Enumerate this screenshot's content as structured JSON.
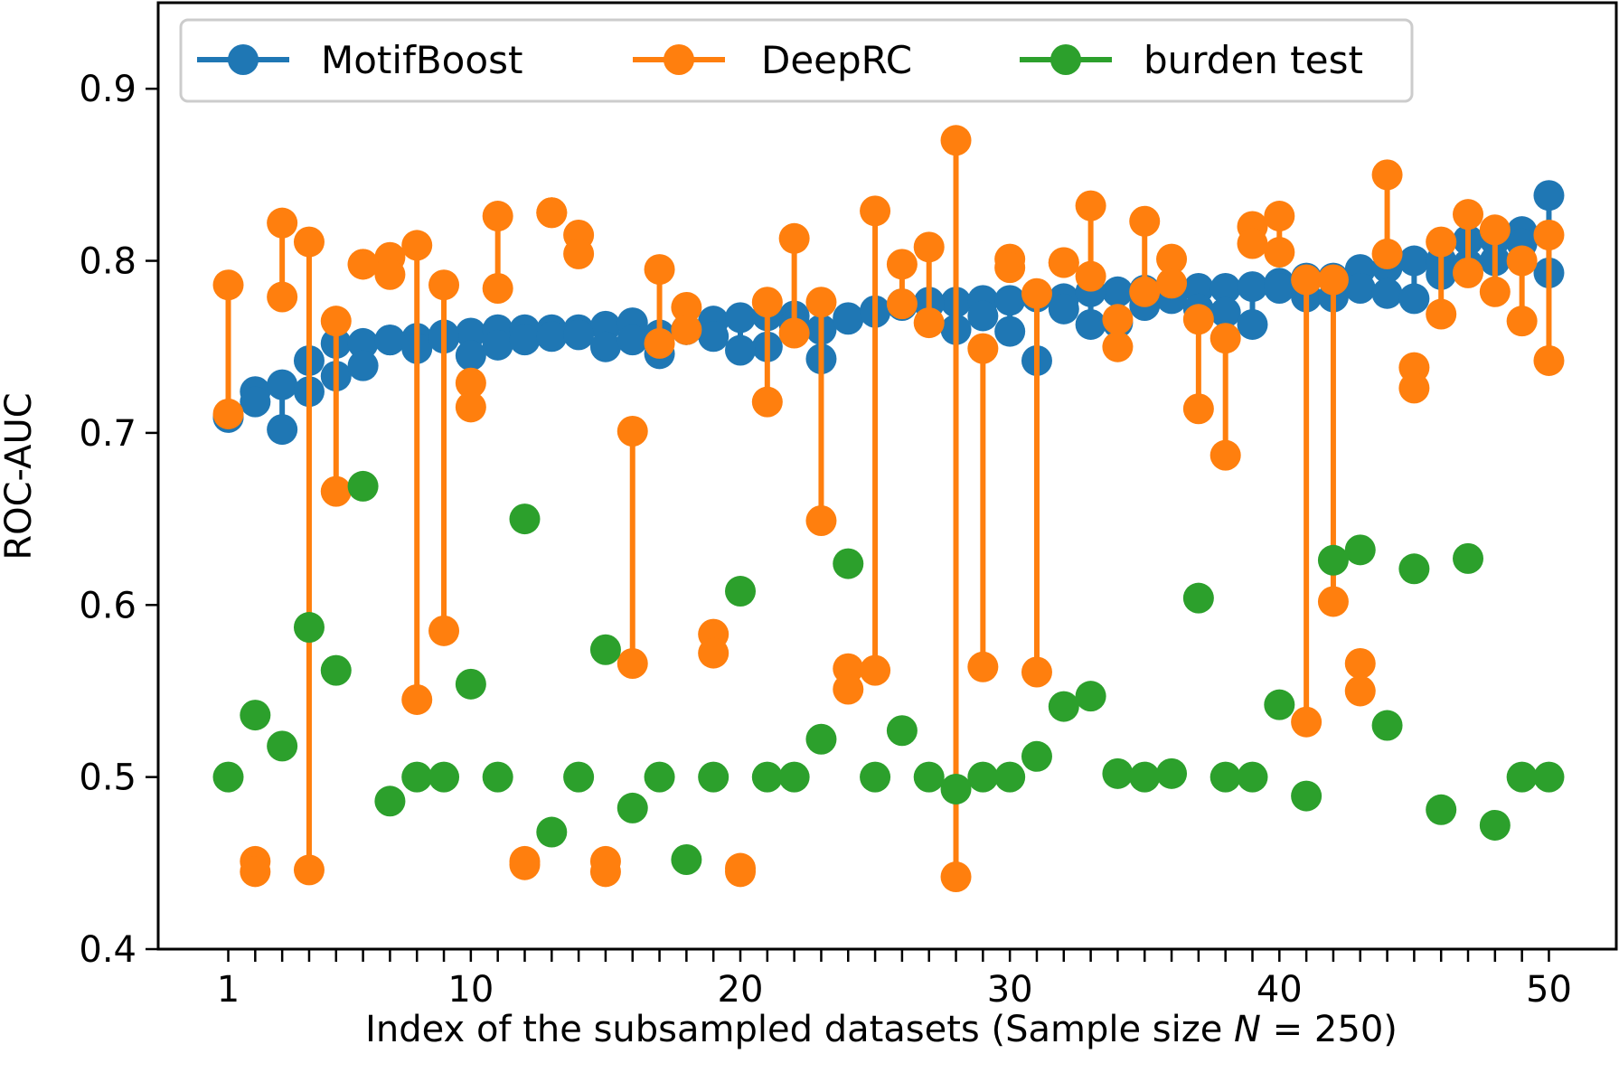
{
  "chart_data": {
    "type": "scatter",
    "title": "",
    "xlabel_prefix": "Index of the subsampled datasets (Sample size ",
    "xlabel_var": "N",
    "xlabel_suffix": " = 250)",
    "ylabel": "ROC-AUC",
    "xlim": [
      -1.6,
      52.5
    ],
    "ylim": [
      0.4,
      0.95
    ],
    "xticks": [
      1,
      10,
      20,
      30,
      40,
      50
    ],
    "xtick_labels": [
      "1",
      "10",
      "20",
      "30",
      "40",
      "50"
    ],
    "yticks": [
      0.4,
      0.5,
      0.6,
      0.7,
      0.8,
      0.9
    ],
    "ytick_labels": [
      "0.4",
      "0.5",
      "0.6",
      "0.7",
      "0.8",
      "0.9"
    ],
    "legend_position": "top",
    "colors": {
      "motifboost": "#1f77b4",
      "deeprc": "#ff7f0e",
      "burden": "#2ca02c"
    },
    "x": [
      1,
      2,
      3,
      4,
      5,
      6,
      7,
      8,
      9,
      10,
      11,
      12,
      13,
      14,
      15,
      16,
      17,
      18,
      19,
      20,
      21,
      22,
      23,
      24,
      25,
      26,
      27,
      28,
      29,
      30,
      31,
      32,
      33,
      34,
      35,
      36,
      37,
      38,
      39,
      40,
      41,
      42,
      43,
      44,
      45,
      46,
      47,
      48,
      49,
      50
    ],
    "series": [
      {
        "name": "MotifBoost",
        "color": "#1f77b4",
        "runs": [
          [
            0.709,
            0.724,
            0.728,
            0.742,
            0.752,
            0.752,
            0.754,
            0.755,
            0.757,
            0.758,
            0.76,
            0.76,
            0.76,
            0.76,
            0.762,
            0.764,
            0.757,
            0.76,
            0.765,
            0.767,
            0.75,
            0.768,
            0.76,
            0.767,
            0.771,
            0.775,
            0.776,
            0.776,
            0.777,
            0.777,
            0.742,
            0.778,
            0.763,
            0.782,
            0.783,
            0.784,
            0.784,
            0.784,
            0.785,
            0.787,
            0.79,
            0.79,
            0.795,
            0.796,
            0.8,
            0.8,
            0.812,
            0.812,
            0.817,
            0.838
          ],
          [
            0.709,
            0.718,
            0.702,
            0.724,
            0.733,
            0.739,
            0.754,
            0.749,
            0.755,
            0.745,
            0.751,
            0.754,
            0.756,
            0.757,
            0.75,
            0.754,
            0.746,
            0.76,
            0.756,
            0.748,
            0.768,
            0.763,
            0.743,
            0.766,
            0.77,
            0.774,
            0.775,
            0.76,
            0.768,
            0.759,
            0.779,
            0.772,
            0.782,
            0.764,
            0.774,
            0.778,
            0.772,
            0.77,
            0.763,
            0.784,
            0.779,
            0.779,
            0.784,
            0.781,
            0.778,
            0.792,
            0.798,
            0.8,
            0.81,
            0.793
          ]
        ]
      },
      {
        "name": "DeepRC",
        "color": "#ff7f0e",
        "runs": [
          [
            0.786,
            0.451,
            0.822,
            0.811,
            0.765,
            0.798,
            0.802,
            0.809,
            0.786,
            0.729,
            0.826,
            0.451,
            0.828,
            0.815,
            0.451,
            0.701,
            0.795,
            0.773,
            0.583,
            0.447,
            0.776,
            0.813,
            0.776,
            0.563,
            0.829,
            0.798,
            0.808,
            0.87,
            0.749,
            0.801,
            0.781,
            0.799,
            0.832,
            0.766,
            0.823,
            0.801,
            0.766,
            0.755,
            0.82,
            0.826,
            0.789,
            0.789,
            0.566,
            0.85,
            0.738,
            0.811,
            0.827,
            0.818,
            0.8,
            0.815
          ],
          [
            0.711,
            0.445,
            0.779,
            0.446,
            0.666,
            0.798,
            0.792,
            0.545,
            0.585,
            0.715,
            0.784,
            0.449,
            0.828,
            0.804,
            0.445,
            0.566,
            0.752,
            0.76,
            0.572,
            0.445,
            0.718,
            0.758,
            0.649,
            0.551,
            0.562,
            0.775,
            0.764,
            0.442,
            0.564,
            0.796,
            0.561,
            0.799,
            0.791,
            0.75,
            0.782,
            0.787,
            0.714,
            0.687,
            0.81,
            0.805,
            0.532,
            0.602,
            0.55,
            0.804,
            0.726,
            0.769,
            0.793,
            0.782,
            0.765,
            0.742
          ]
        ]
      },
      {
        "name": "burden test",
        "color": "#2ca02c",
        "runs": [
          [
            0.5,
            0.536,
            0.518,
            0.587,
            0.562,
            0.669,
            0.486,
            0.5,
            0.5,
            0.554,
            0.5,
            0.65,
            0.468,
            0.5,
            0.574,
            0.482,
            0.5,
            0.452,
            0.5,
            0.608,
            0.5,
            0.5,
            0.522,
            0.624,
            0.5,
            0.527,
            0.5,
            0.493,
            0.5,
            0.5,
            0.512,
            0.541,
            0.547,
            0.502,
            0.5,
            0.502,
            0.604,
            0.5,
            0.5,
            0.542,
            0.489,
            0.626,
            0.632,
            0.53,
            0.621,
            0.481,
            0.627,
            0.472,
            0.5,
            0.5
          ]
        ]
      }
    ]
  }
}
